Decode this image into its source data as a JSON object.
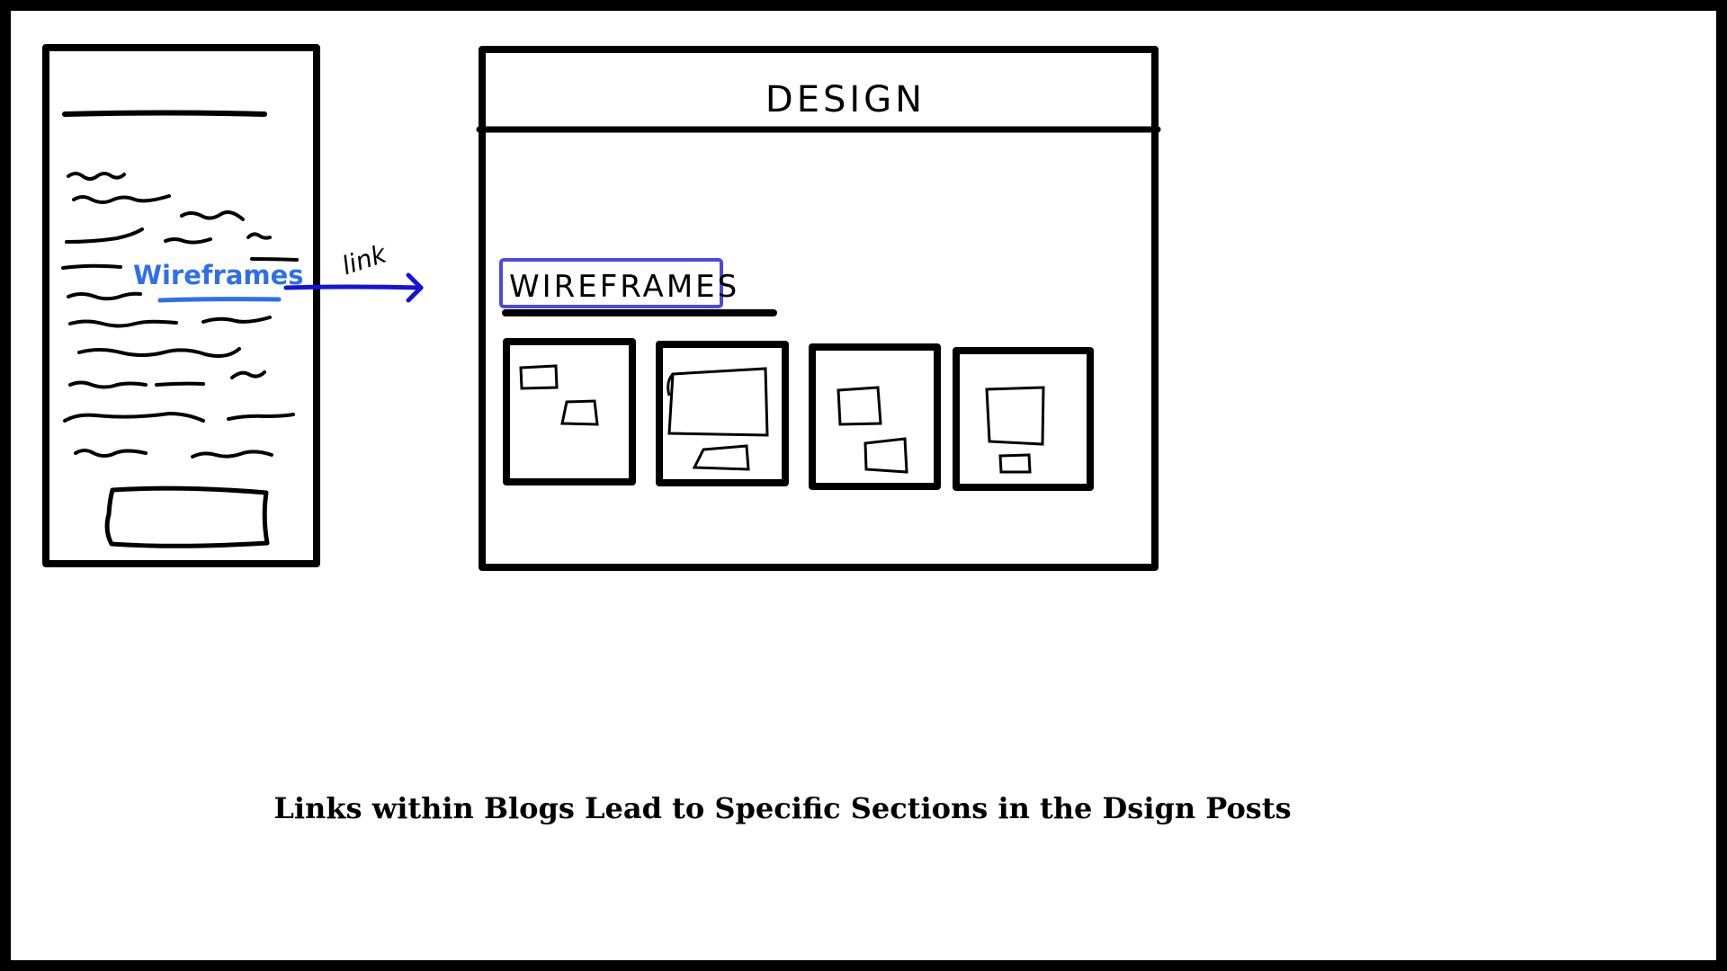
{
  "blog_panel": {
    "link_text": "Wireframes"
  },
  "connector": {
    "label": "link"
  },
  "design_panel": {
    "title": "DESIGN",
    "section_heading": "WIREFRAMES",
    "thumbnails": [
      {
        "name": "thumbnail-1"
      },
      {
        "name": "thumbnail-2"
      },
      {
        "name": "thumbnail-3"
      },
      {
        "name": "thumbnail-4"
      }
    ]
  },
  "caption": "Links within Blogs Lead to Specific Sections in the Dsign Posts",
  "colors": {
    "link_blue": "#2f6fe8",
    "arrow_blue": "#1414d6",
    "heading_box_blue": "#4a4ae0",
    "ink": "#000000"
  }
}
